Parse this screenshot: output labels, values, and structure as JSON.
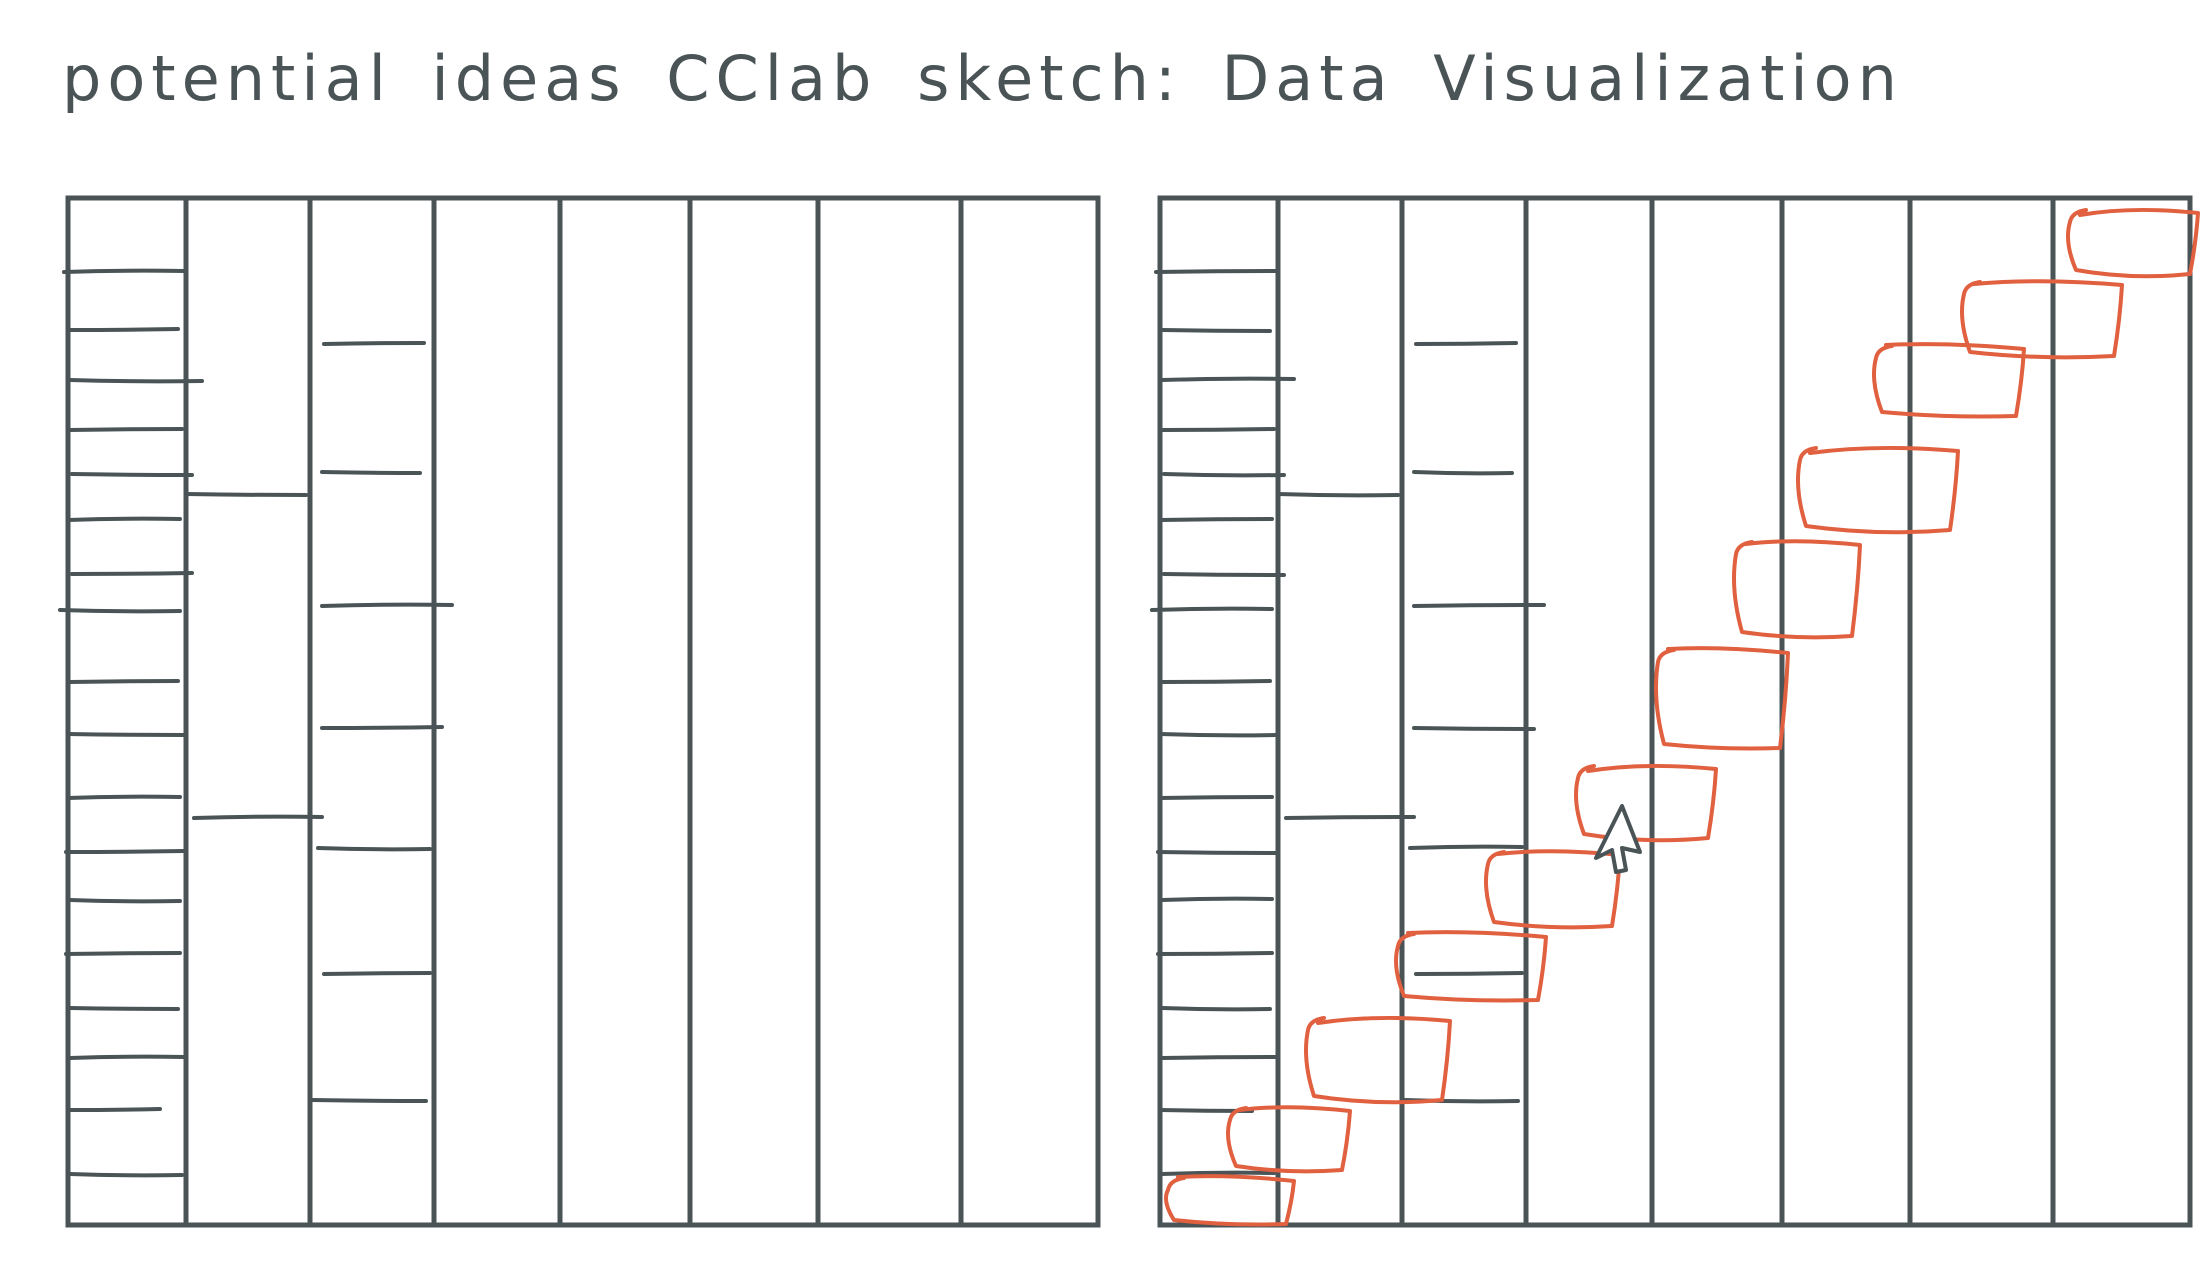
{
  "title": "potential ideas CClab sketch: Data Visualization",
  "colors": {
    "ink": "#4a5457",
    "accent": "#e0603f",
    "background": "#ffffff"
  },
  "panels": [
    {
      "name": "grid-panel-plain",
      "has_staircase": false,
      "has_cursor": false
    },
    {
      "name": "grid-panel-staircase",
      "has_staircase": true,
      "has_cursor": true
    }
  ],
  "cursor_icon": "arrow-cursor-icon"
}
